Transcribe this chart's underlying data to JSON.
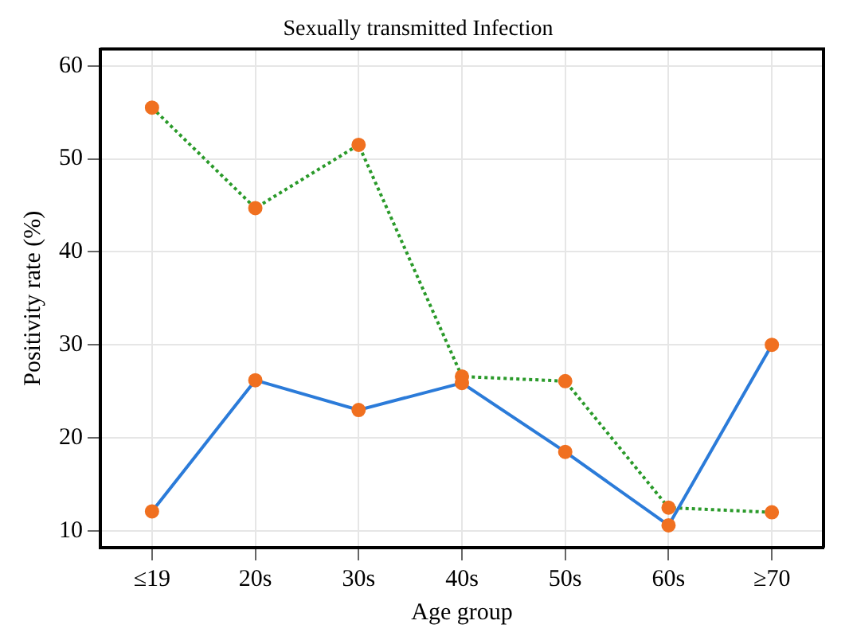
{
  "chart_data": {
    "type": "line",
    "title": "Sexually transmitted Infection",
    "xlabel": "Age group",
    "ylabel": "Positivity rate (%)",
    "categories": [
      "≤19",
      "20s",
      "30s",
      "40s",
      "50s",
      "60s",
      "≥70"
    ],
    "series": [
      {
        "color": "#2b7bd9",
        "line_style": "solid",
        "values": [
          12.1,
          26.2,
          23.0,
          25.9,
          18.5,
          10.6,
          30.0
        ]
      },
      {
        "color": "#2a9a2a",
        "line_style": "dotted",
        "values": [
          55.5,
          44.7,
          51.5,
          26.6,
          26.1,
          12.5,
          12.0
        ]
      }
    ],
    "ylim": [
      8.2,
      61.8
    ],
    "yticks": [
      10,
      20,
      30,
      40,
      50,
      60
    ],
    "grid": true,
    "legend": false,
    "marker": "circle"
  }
}
